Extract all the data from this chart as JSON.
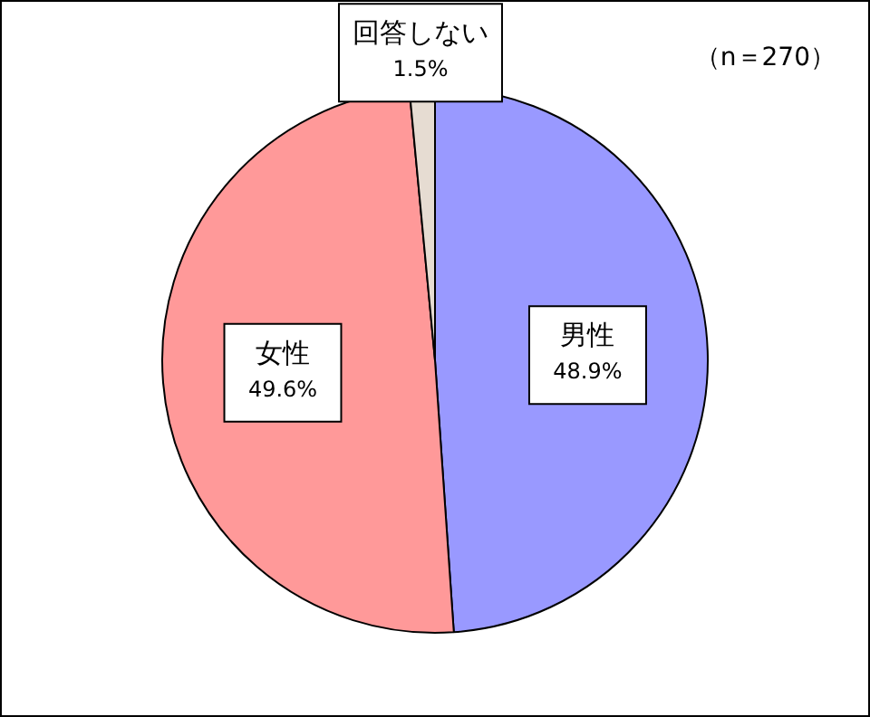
{
  "chart_data": {
    "type": "pie",
    "categories": [
      "男性",
      "女性",
      "回答しない"
    ],
    "values": [
      48.9,
      49.6,
      1.5
    ],
    "value_labels": [
      "48.9%",
      "49.6%",
      "1.5%"
    ],
    "colors": [
      "#9999ff",
      "#ff9999",
      "#e6dcd2"
    ],
    "annotations": [
      "（n＝270）"
    ]
  }
}
